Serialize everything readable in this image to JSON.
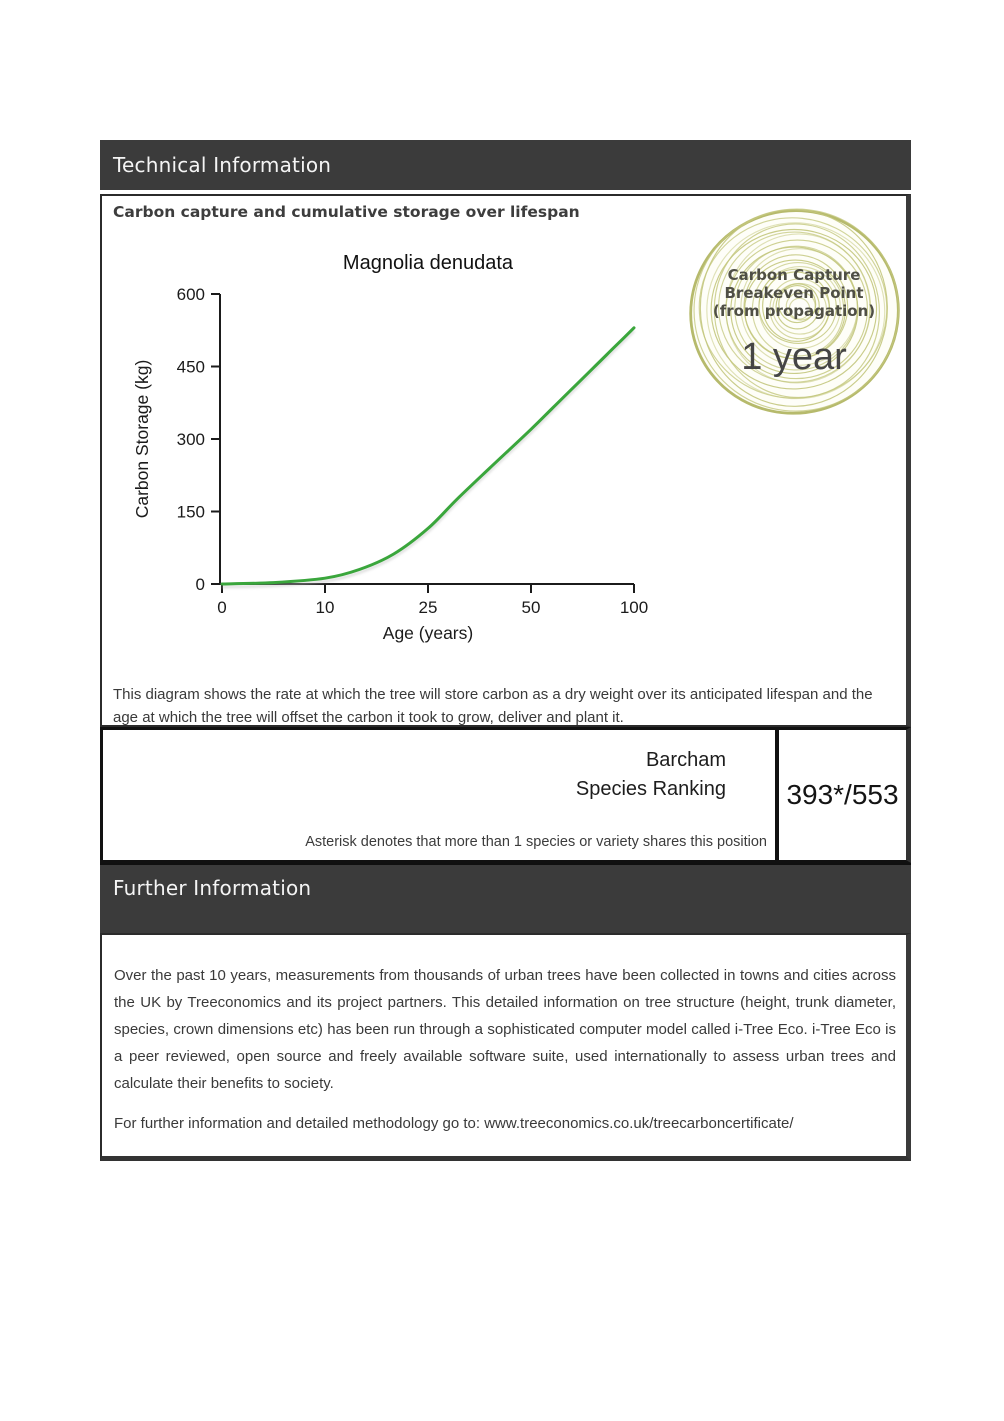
{
  "technical": {
    "header": "Technical Information",
    "section_title": "Carbon capture and cumulative storage over lifespan",
    "diagram_note": "This diagram shows the rate at which the tree will store carbon as a dry weight over its anticipated lifespan and the age at which the tree will offset the carbon it took to grow, deliver and plant it."
  },
  "chart_data": {
    "type": "line",
    "title": "Magnolia denudata",
    "xlabel": "Age (years)",
    "ylabel": "Carbon Storage (kg)",
    "x_ticks": [
      0,
      10,
      25,
      50,
      100
    ],
    "y_ticks": [
      0,
      150,
      300,
      450,
      600
    ],
    "ylim": [
      0,
      600
    ],
    "axis_note": "x-axis is non-linear: labeled ticks are equally spaced",
    "grid": false,
    "legend": false,
    "series": [
      {
        "name": "Carbon Storage (kg)",
        "color": "#3aa63c",
        "points": [
          {
            "age": 0,
            "kg": 0
          },
          {
            "age": 5,
            "kg": 3
          },
          {
            "age": 10,
            "kg": 12
          },
          {
            "age": 15,
            "kg": 30
          },
          {
            "age": 20,
            "kg": 62
          },
          {
            "age": 25,
            "kg": 115
          },
          {
            "age": 32,
            "kg": 175
          },
          {
            "age": 40,
            "kg": 240
          },
          {
            "age": 50,
            "kg": 320
          },
          {
            "age": 60,
            "kg": 362
          },
          {
            "age": 70,
            "kg": 404
          },
          {
            "age": 80,
            "kg": 446
          },
          {
            "age": 90,
            "kg": 488
          },
          {
            "age": 100,
            "kg": 530
          }
        ]
      }
    ]
  },
  "badge": {
    "title_lines": [
      "Carbon Capture",
      "Breakeven Point",
      "(from propagation)"
    ],
    "value": "1 year",
    "ring_color": "#c3c77d",
    "ring_color_dark": "#b6ba6c"
  },
  "ranking": {
    "label_line1": "Barcham",
    "label_line2": "Species Ranking",
    "value": "393*/553",
    "footnote": "Asterisk denotes that more than 1 species or variety shares this position"
  },
  "further": {
    "header": "Further Information",
    "paragraph": "Over the past 10 years, measurements from thousands of urban trees have been collected in towns and cities across the UK by Treeconomics and its project partners. This detailed information on tree structure (height, trunk diameter, species, crown dimensions etc) has been run through a sophisticated computer model called i-Tree Eco. i-Tree Eco is a peer reviewed, open source and freely available software suite, used internationally to assess urban trees and calculate their benefits to society.",
    "link_prefix": "For further information and detailed methodology go to: ",
    "link_url": "www.treeconomics.co.uk/treecarboncertificate/"
  },
  "colors": {
    "header_bg": "#3b3b3b",
    "curve_green": "#3aa63c",
    "body_text": "#3a3a3a"
  }
}
